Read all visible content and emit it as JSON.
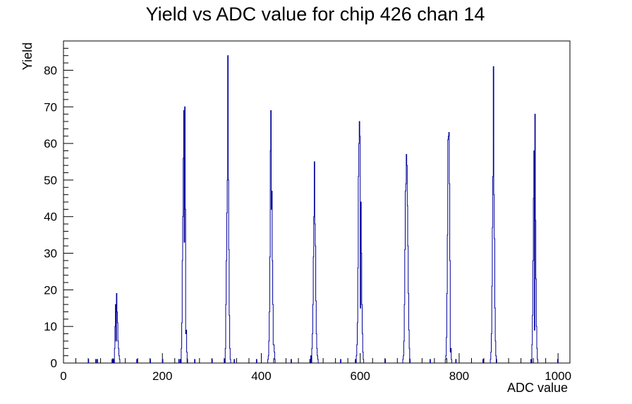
{
  "colors": {
    "histogram_line": "#000099",
    "frame": "#000000",
    "background": "#ffffff"
  },
  "chart_data": {
    "type": "bar",
    "style": "step-histogram",
    "title": "Yield vs ADC value for chip 426 chan 14",
    "xlabel": "ADC value",
    "ylabel": "Yield",
    "xlim": [
      0,
      1024
    ],
    "ylim": [
      0,
      88
    ],
    "x_ticks": [
      0,
      200,
      400,
      600,
      800,
      1000
    ],
    "y_ticks": [
      0,
      10,
      20,
      30,
      40,
      50,
      60,
      70,
      80
    ],
    "grid": false,
    "legend": "none",
    "bin_width": 1,
    "bins": [
      [
        50,
        1
      ],
      [
        65,
        1
      ],
      [
        68,
        1
      ],
      [
        98,
        1
      ],
      [
        101,
        1
      ],
      [
        103,
        4
      ],
      [
        104,
        10
      ],
      [
        105,
        16
      ],
      [
        106,
        6
      ],
      [
        107,
        19
      ],
      [
        108,
        14
      ],
      [
        109,
        11
      ],
      [
        110,
        6
      ],
      [
        111,
        4
      ],
      [
        112,
        2
      ],
      [
        113,
        1
      ],
      [
        148,
        1
      ],
      [
        175,
        1
      ],
      [
        200,
        1
      ],
      [
        233,
        1
      ],
      [
        236,
        1
      ],
      [
        238,
        4
      ],
      [
        239,
        11
      ],
      [
        240,
        28
      ],
      [
        241,
        40
      ],
      [
        242,
        56
      ],
      [
        243,
        69
      ],
      [
        244,
        33
      ],
      [
        245,
        70
      ],
      [
        246,
        42
      ],
      [
        247,
        8
      ],
      [
        248,
        9
      ],
      [
        249,
        3
      ],
      [
        250,
        1
      ],
      [
        265,
        1
      ],
      [
        300,
        1
      ],
      [
        325,
        1
      ],
      [
        327,
        4
      ],
      [
        328,
        16
      ],
      [
        329,
        28
      ],
      [
        330,
        41
      ],
      [
        331,
        50
      ],
      [
        332,
        84
      ],
      [
        333,
        50
      ],
      [
        334,
        31
      ],
      [
        335,
        13
      ],
      [
        336,
        4
      ],
      [
        337,
        1
      ],
      [
        345,
        1
      ],
      [
        390,
        1
      ],
      [
        413,
        1
      ],
      [
        414,
        2
      ],
      [
        415,
        6
      ],
      [
        416,
        14
      ],
      [
        417,
        29
      ],
      [
        418,
        58
      ],
      [
        419,
        69
      ],
      [
        420,
        42
      ],
      [
        421,
        47
      ],
      [
        422,
        28
      ],
      [
        423,
        16
      ],
      [
        424,
        5
      ],
      [
        425,
        5
      ],
      [
        426,
        3
      ],
      [
        427,
        1
      ],
      [
        460,
        1
      ],
      [
        498,
        1
      ],
      [
        500,
        2
      ],
      [
        502,
        4
      ],
      [
        503,
        8
      ],
      [
        504,
        16
      ],
      [
        505,
        29
      ],
      [
        506,
        40
      ],
      [
        507,
        55
      ],
      [
        508,
        38
      ],
      [
        509,
        32
      ],
      [
        510,
        17
      ],
      [
        511,
        8
      ],
      [
        512,
        4
      ],
      [
        513,
        2
      ],
      [
        514,
        1
      ],
      [
        560,
        1
      ],
      [
        590,
        1
      ],
      [
        592,
        2
      ],
      [
        593,
        5
      ],
      [
        594,
        11
      ],
      [
        595,
        26
      ],
      [
        596,
        51
      ],
      [
        597,
        60
      ],
      [
        598,
        66
      ],
      [
        599,
        62
      ],
      [
        600,
        15
      ],
      [
        601,
        44
      ],
      [
        602,
        30
      ],
      [
        603,
        16
      ],
      [
        604,
        8
      ],
      [
        605,
        3
      ],
      [
        606,
        1
      ],
      [
        650,
        1
      ],
      [
        686,
        1
      ],
      [
        687,
        2
      ],
      [
        688,
        6
      ],
      [
        689,
        16
      ],
      [
        690,
        31
      ],
      [
        691,
        47
      ],
      [
        692,
        49
      ],
      [
        693,
        57
      ],
      [
        694,
        54
      ],
      [
        695,
        43
      ],
      [
        696,
        32
      ],
      [
        697,
        19
      ],
      [
        698,
        9
      ],
      [
        699,
        4
      ],
      [
        700,
        1
      ],
      [
        741,
        1
      ],
      [
        772,
        1
      ],
      [
        773,
        2
      ],
      [
        774,
        7
      ],
      [
        775,
        19
      ],
      [
        776,
        35
      ],
      [
        777,
        61
      ],
      [
        778,
        62
      ],
      [
        779,
        63
      ],
      [
        780,
        49
      ],
      [
        781,
        28
      ],
      [
        782,
        3
      ],
      [
        783,
        4
      ],
      [
        784,
        1
      ],
      [
        793,
        1
      ],
      [
        848,
        1
      ],
      [
        863,
        1
      ],
      [
        864,
        3
      ],
      [
        865,
        8
      ],
      [
        866,
        21
      ],
      [
        867,
        37
      ],
      [
        868,
        51
      ],
      [
        869,
        81
      ],
      [
        870,
        46
      ],
      [
        871,
        34
      ],
      [
        872,
        15
      ],
      [
        873,
        6
      ],
      [
        874,
        2
      ],
      [
        875,
        1
      ],
      [
        945,
        1
      ],
      [
        947,
        5
      ],
      [
        948,
        13
      ],
      [
        949,
        28
      ],
      [
        950,
        45
      ],
      [
        951,
        58
      ],
      [
        952,
        9
      ],
      [
        953,
        68
      ],
      [
        954,
        39
      ],
      [
        955,
        23
      ],
      [
        956,
        10
      ],
      [
        957,
        4
      ],
      [
        958,
        1
      ],
      [
        999,
        1
      ]
    ]
  }
}
